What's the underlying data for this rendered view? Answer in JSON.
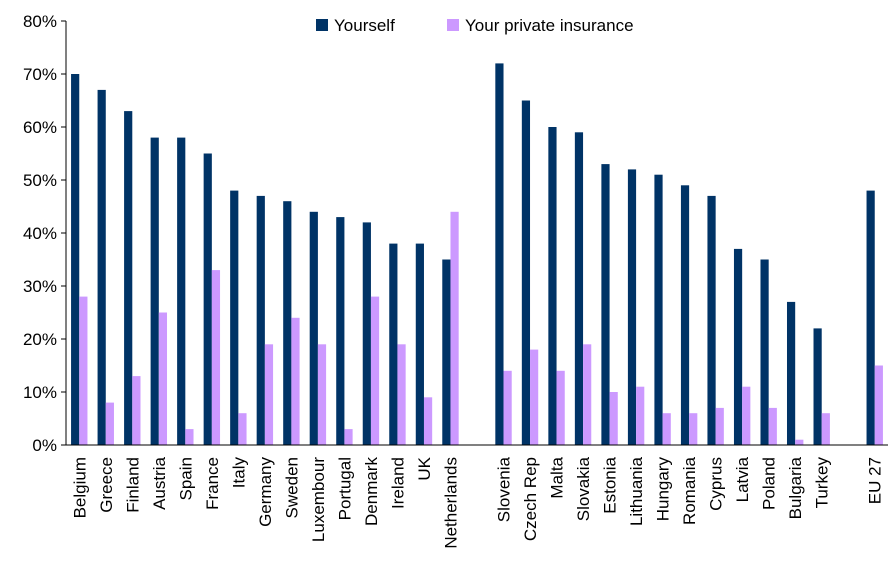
{
  "chart_data": {
    "type": "bar",
    "categories": [
      "Belgium",
      "Greece",
      "Finland",
      "Austria",
      "Spain",
      "France",
      "Italy",
      "Germany",
      "Sweden",
      "Luxembour",
      "Portugal",
      "Denmark",
      "Ireland",
      "UK",
      "Netherlands",
      "",
      "Slovenia",
      "Czech Rep",
      "Malta",
      "Slovakia",
      "Estonia",
      "Lithuania",
      "Hungary",
      "Romania",
      "Cyprus",
      "Latvia",
      "Poland",
      "Bulgaria",
      "Turkey",
      "",
      "EU 27"
    ],
    "series": [
      {
        "name": "Yourself",
        "color": "#003366",
        "values": [
          70,
          67,
          63,
          58,
          58,
          55,
          48,
          47,
          46,
          44,
          43,
          42,
          38,
          38,
          35,
          null,
          72,
          65,
          60,
          59,
          53,
          52,
          51,
          49,
          47,
          37,
          35,
          27,
          22,
          null,
          48
        ]
      },
      {
        "name": "Your private insurance",
        "color": "#cc99ff",
        "values": [
          28,
          8,
          13,
          25,
          3,
          33,
          6,
          19,
          24,
          19,
          3,
          28,
          19,
          9,
          44,
          null,
          14,
          18,
          14,
          19,
          10,
          11,
          6,
          6,
          7,
          11,
          7,
          1,
          6,
          null,
          15
        ]
      }
    ],
    "ylim": [
      0,
      80
    ],
    "yticks": [
      "0%",
      "10%",
      "20%",
      "30%",
      "40%",
      "50%",
      "60%",
      "70%",
      "80%"
    ],
    "grid": false,
    "legend": "top-center"
  }
}
